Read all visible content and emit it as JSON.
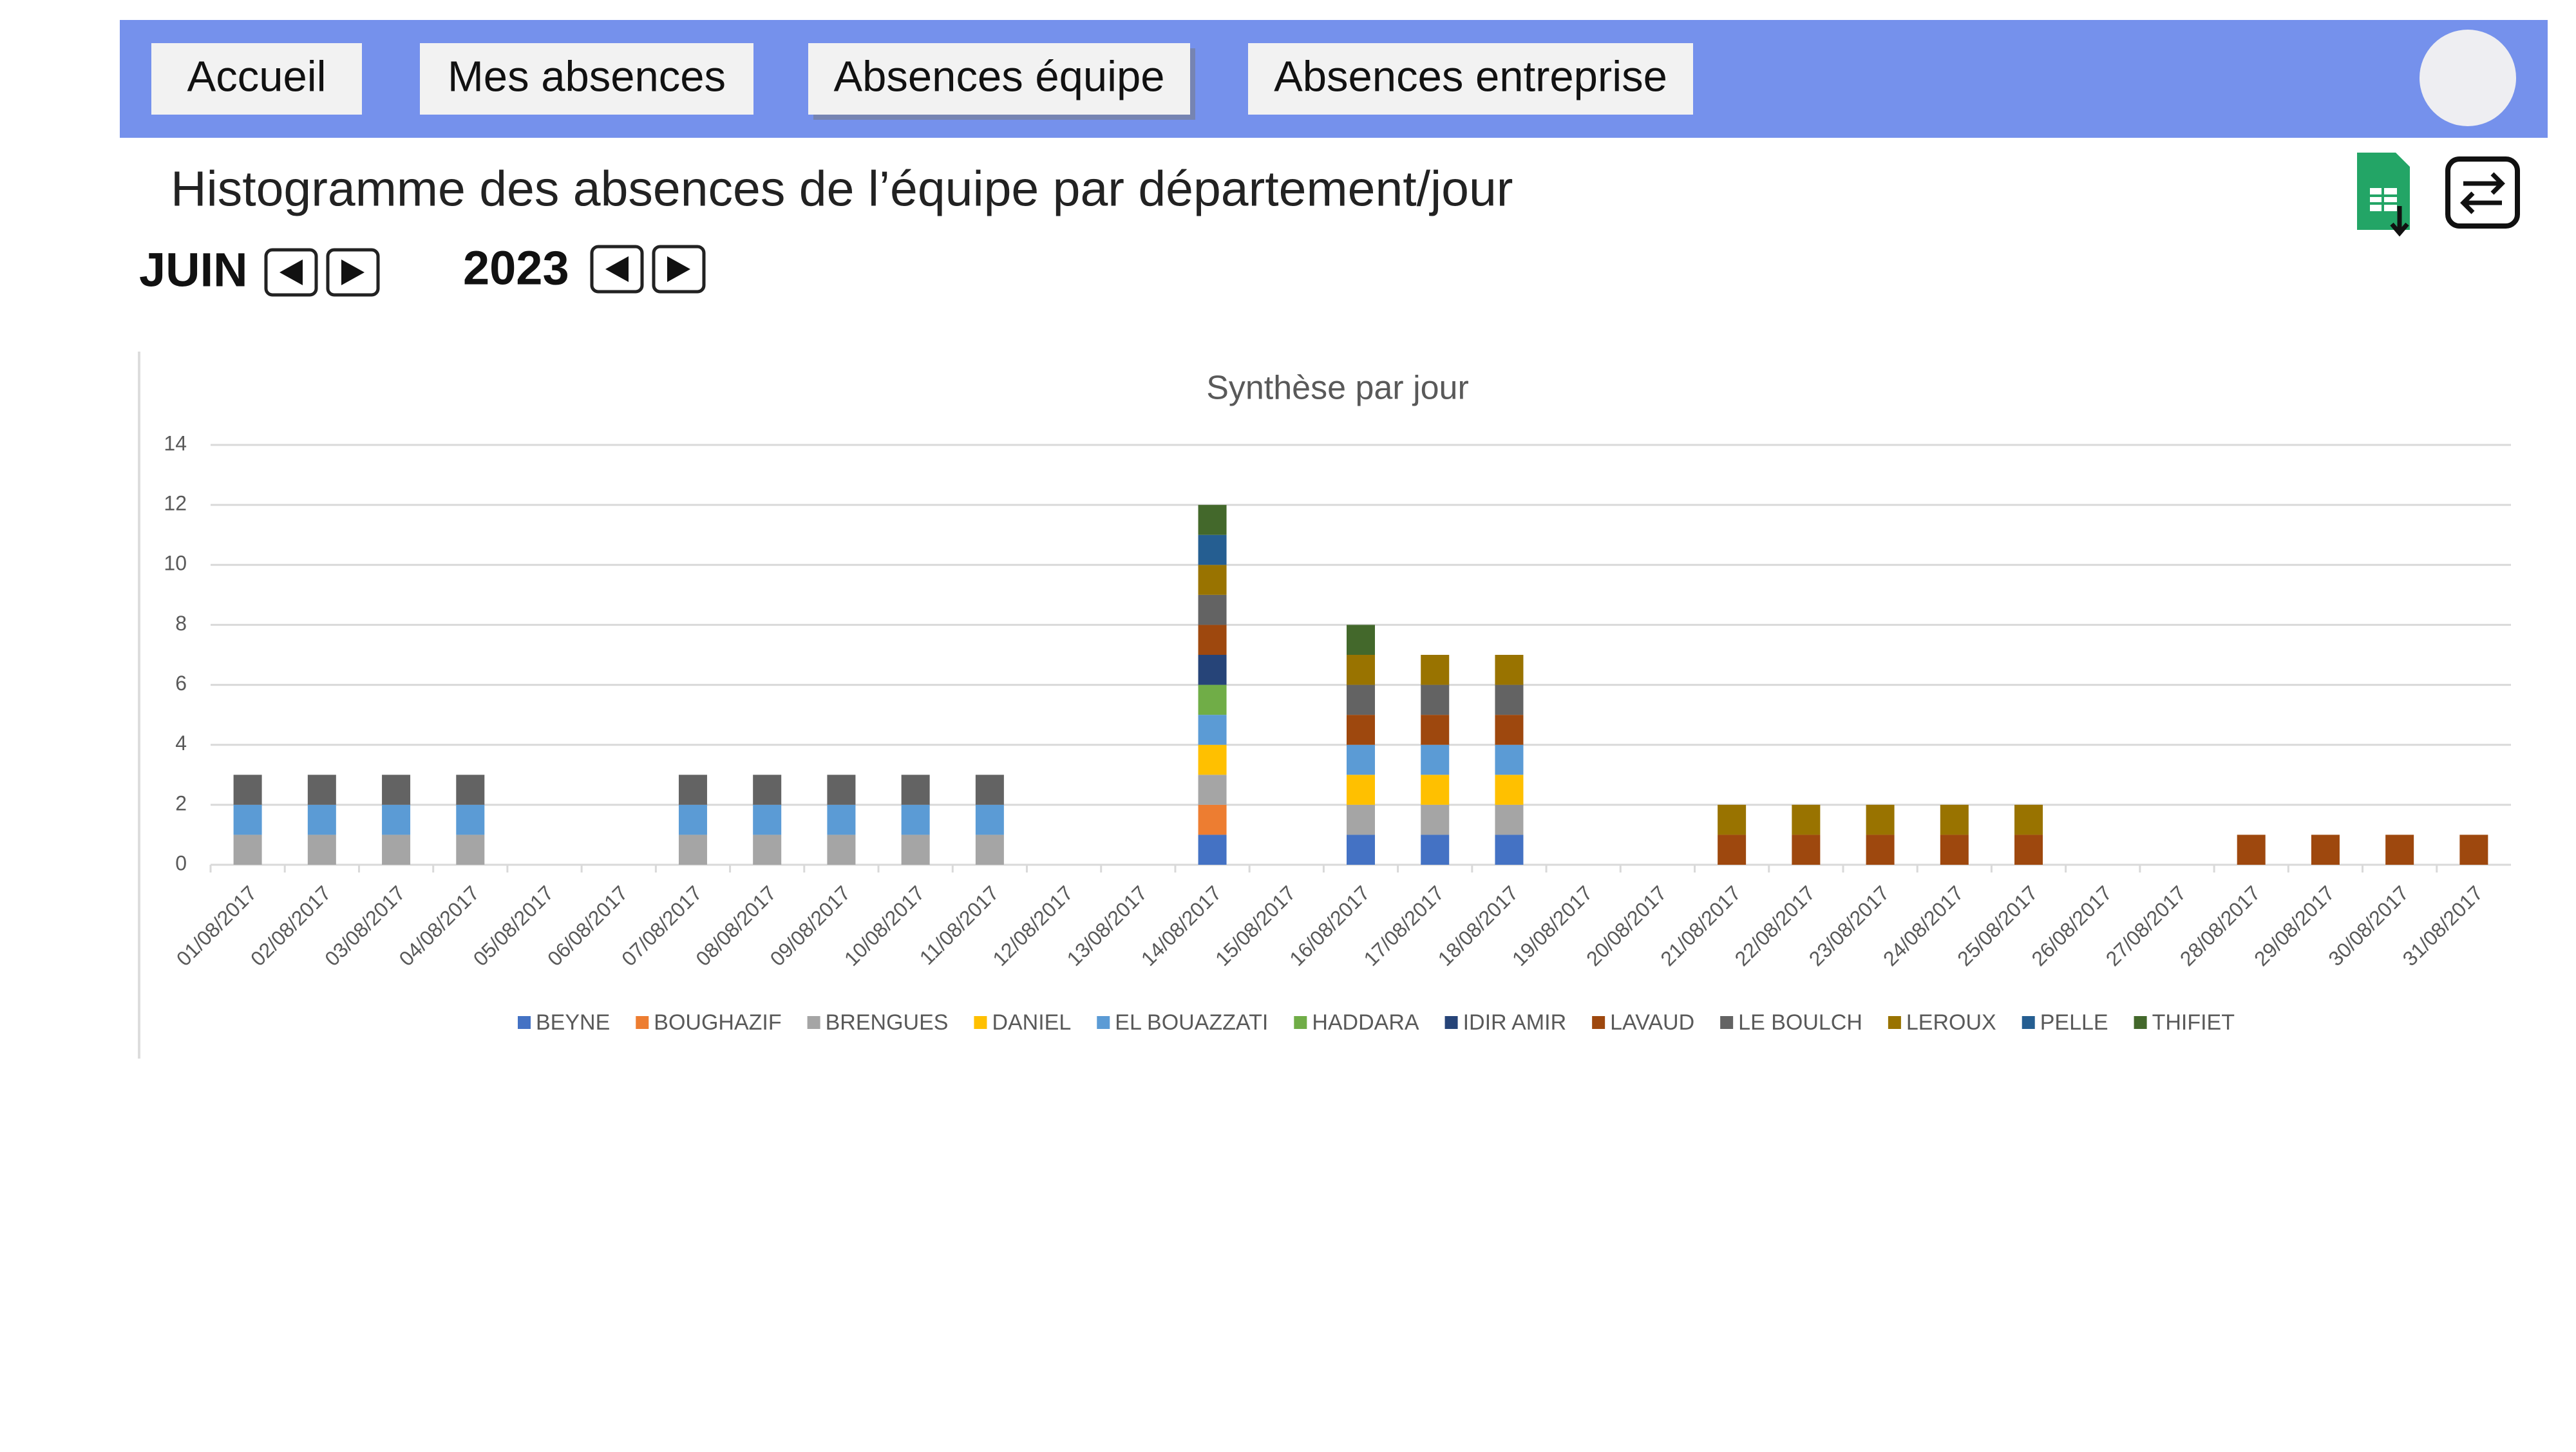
{
  "nav": [
    "Accueil",
    "Mes absences",
    "Absences équipe",
    "Absences entreprise"
  ],
  "page_title": "Histogramme des absences de l’équipe par département/jour",
  "month": "JUIN",
  "year": "2023",
  "chart_data": {
    "type": "stacked-bar",
    "title": "Synthèse par jour",
    "categories": [
      "01/08/2017",
      "02/08/2017",
      "03/08/2017",
      "04/08/2017",
      "05/08/2017",
      "06/08/2017",
      "07/08/2017",
      "08/08/2017",
      "09/08/2017",
      "10/08/2017",
      "11/08/2017",
      "12/08/2017",
      "13/08/2017",
      "14/08/2017",
      "15/08/2017",
      "16/08/2017",
      "17/08/2017",
      "18/08/2017",
      "19/08/2017",
      "20/08/2017",
      "21/08/2017",
      "22/08/2017",
      "23/08/2017",
      "24/08/2017",
      "25/08/2017",
      "26/08/2017",
      "27/08/2017",
      "28/08/2017",
      "29/08/2017",
      "30/08/2017",
      "31/08/2017"
    ],
    "series": [
      {
        "name": "BEYNE",
        "color": "#4472c4",
        "values": [
          0,
          0,
          0,
          0,
          0,
          0,
          0,
          0,
          0,
          0,
          0,
          0,
          0,
          1,
          0,
          1,
          1,
          1,
          0,
          0,
          0,
          0,
          0,
          0,
          0,
          0,
          0,
          0,
          0,
          0,
          0
        ]
      },
      {
        "name": "BOUGHAZIF",
        "color": "#ed7d31",
        "values": [
          0,
          0,
          0,
          0,
          0,
          0,
          0,
          0,
          0,
          0,
          0,
          0,
          0,
          1,
          0,
          0,
          0,
          0,
          0,
          0,
          0,
          0,
          0,
          0,
          0,
          0,
          0,
          0,
          0,
          0,
          0
        ]
      },
      {
        "name": "BRENGUES",
        "color": "#a5a5a5",
        "values": [
          1,
          1,
          1,
          1,
          0,
          0,
          1,
          1,
          1,
          1,
          1,
          0,
          0,
          1,
          0,
          1,
          1,
          1,
          0,
          0,
          0,
          0,
          0,
          0,
          0,
          0,
          0,
          0,
          0,
          0,
          0
        ]
      },
      {
        "name": "DANIEL",
        "color": "#ffc000",
        "values": [
          0,
          0,
          0,
          0,
          0,
          0,
          0,
          0,
          0,
          0,
          0,
          0,
          0,
          1,
          0,
          1,
          1,
          1,
          0,
          0,
          0,
          0,
          0,
          0,
          0,
          0,
          0,
          0,
          0,
          0,
          0
        ]
      },
      {
        "name": "EL BOUAZZATI",
        "color": "#5b9bd5",
        "values": [
          1,
          1,
          1,
          1,
          0,
          0,
          1,
          1,
          1,
          1,
          1,
          0,
          0,
          1,
          0,
          1,
          1,
          1,
          0,
          0,
          0,
          0,
          0,
          0,
          0,
          0,
          0,
          0,
          0,
          0,
          0
        ]
      },
      {
        "name": "HADDARA",
        "color": "#70ad47",
        "values": [
          0,
          0,
          0,
          0,
          0,
          0,
          0,
          0,
          0,
          0,
          0,
          0,
          0,
          1,
          0,
          0,
          0,
          0,
          0,
          0,
          0,
          0,
          0,
          0,
          0,
          0,
          0,
          0,
          0,
          0,
          0
        ]
      },
      {
        "name": "IDIR AMIR",
        "color": "#264478",
        "values": [
          0,
          0,
          0,
          0,
          0,
          0,
          0,
          0,
          0,
          0,
          0,
          0,
          0,
          1,
          0,
          0,
          0,
          0,
          0,
          0,
          0,
          0,
          0,
          0,
          0,
          0,
          0,
          0,
          0,
          0,
          0
        ]
      },
      {
        "name": "LAVAUD",
        "color": "#9e480e",
        "values": [
          0,
          0,
          0,
          0,
          0,
          0,
          0,
          0,
          0,
          0,
          0,
          0,
          0,
          1,
          0,
          1,
          1,
          1,
          0,
          0,
          1,
          1,
          1,
          1,
          1,
          0,
          0,
          1,
          1,
          1,
          1
        ]
      },
      {
        "name": "LE BOULCH",
        "color": "#636363",
        "values": [
          1,
          1,
          1,
          1,
          0,
          0,
          1,
          1,
          1,
          1,
          1,
          0,
          0,
          1,
          0,
          1,
          1,
          1,
          0,
          0,
          0,
          0,
          0,
          0,
          0,
          0,
          0,
          0,
          0,
          0,
          0
        ]
      },
      {
        "name": "LEROUX",
        "color": "#997300",
        "values": [
          0,
          0,
          0,
          0,
          0,
          0,
          0,
          0,
          0,
          0,
          0,
          0,
          0,
          1,
          0,
          1,
          1,
          1,
          0,
          0,
          1,
          1,
          1,
          1,
          1,
          0,
          0,
          0,
          0,
          0,
          0
        ]
      },
      {
        "name": "PELLE",
        "color": "#255e91",
        "values": [
          0,
          0,
          0,
          0,
          0,
          0,
          0,
          0,
          0,
          0,
          0,
          0,
          0,
          1,
          0,
          0,
          0,
          0,
          0,
          0,
          0,
          0,
          0,
          0,
          0,
          0,
          0,
          0,
          0,
          0,
          0
        ]
      },
      {
        "name": "THIFIET",
        "color": "#43682b",
        "values": [
          0,
          0,
          0,
          0,
          0,
          0,
          0,
          0,
          0,
          0,
          0,
          0,
          0,
          1,
          0,
          1,
          0,
          0,
          0,
          0,
          0,
          0,
          0,
          0,
          0,
          0,
          0,
          0,
          0,
          0,
          0
        ]
      }
    ],
    "ylim": [
      0,
      14
    ],
    "yticks": [
      0,
      2,
      4,
      6,
      8,
      10,
      12,
      14
    ],
    "grid": true,
    "legend": "bottom"
  }
}
